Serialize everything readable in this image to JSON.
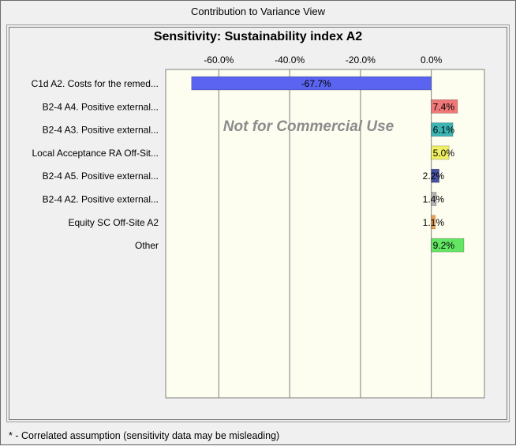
{
  "window": {
    "title": "Contribution to Variance View"
  },
  "watermark": "Not for Commercial Use",
  "footnote": "* - Correlated assumption (sensitivity data may be misleading)",
  "chart_data": {
    "type": "bar",
    "orientation": "horizontal",
    "title": "Sensitivity: Sustainability index A2",
    "xlabel": "",
    "ylabel": "",
    "xlim": [
      -0.75,
      0.15
    ],
    "ticks": [
      -0.6,
      -0.4,
      -0.2,
      0.0
    ],
    "tick_labels": [
      "-60.0%",
      "-40.0%",
      "-20.0%",
      "0.0%"
    ],
    "grid": true,
    "categories": [
      "C1d A2. Costs for the remed...",
      "B2-4 A4.  Positive external...",
      "B2-4 A3.  Positive external...",
      "Local Acceptance RA Off-Sit...",
      "B2-4 A5.  Positive external...",
      "B2-4 A2.  Positive external...",
      "Equity SC Off-Site A2",
      "Other"
    ],
    "values": [
      -0.677,
      0.074,
      0.061,
      0.05,
      0.022,
      0.014,
      0.011,
      0.092
    ],
    "value_labels": [
      "-67.7%",
      "7.4%",
      "6.1%",
      "5.0%",
      "2.2%",
      "1.4%",
      "1.1%",
      "9.2%"
    ],
    "colors": [
      "#5a64f0",
      "#f07878",
      "#3cb4b4",
      "#f0f064",
      "#4652a0",
      "#b4b4b4",
      "#f0a050",
      "#64e664"
    ],
    "plot_background": "#fdfdf0"
  }
}
